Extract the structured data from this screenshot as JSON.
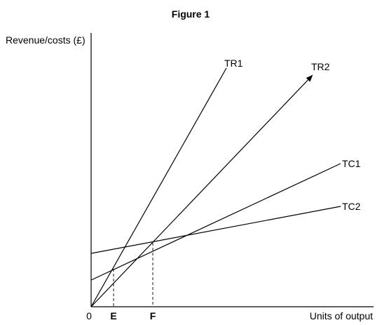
{
  "figure_title": "Figure 1",
  "y_axis_label": "Revenue/costs (£)",
  "x_axis_label": "Units of output",
  "origin_label": "0",
  "x_markers": [
    "E",
    "F"
  ],
  "lines": {
    "tr1": "TR1",
    "tr2": "TR2",
    "tc1": "TC1",
    "tc2": "TC2"
  }
}
